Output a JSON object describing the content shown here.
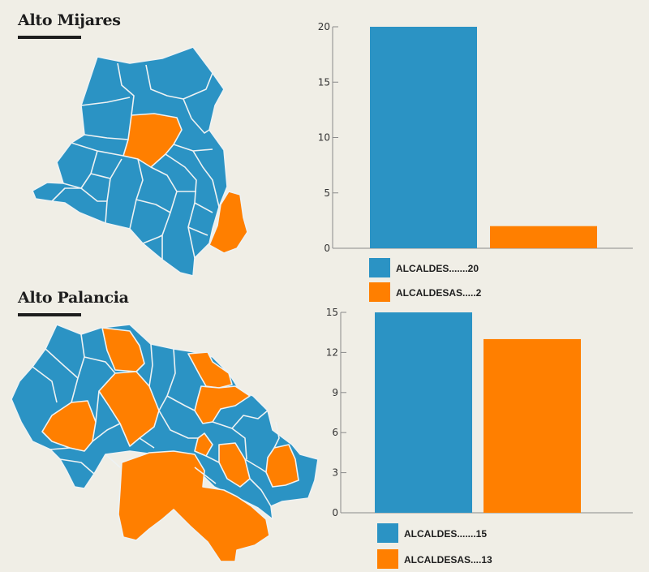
{
  "colors": {
    "alcaldes": "#2b93c4",
    "alcaldesas": "#ff7f00",
    "border": "#eef2f3",
    "axis": "#8a8a8a"
  },
  "sections": [
    {
      "title": "Alto Mijares"
    },
    {
      "title": "Alto Palancia"
    }
  ],
  "chart_data": [
    {
      "type": "bar",
      "title": "Alto Mijares",
      "categories": [
        "ALCALDES",
        "ALCALDESAS"
      ],
      "values": [
        20,
        2
      ],
      "ylim": [
        0,
        20
      ],
      "yticks": [
        0,
        5,
        10,
        15,
        20
      ],
      "grid": false,
      "legend_position": "bottom-left",
      "legend": [
        {
          "label": "ALCALDES.......20",
          "color": "#2b93c4"
        },
        {
          "label": "ALCALDESAS.....2",
          "color": "#ff7f00"
        }
      ]
    },
    {
      "type": "bar",
      "title": "Alto Palancia",
      "categories": [
        "ALCALDES",
        "ALCALDESAS"
      ],
      "values": [
        15,
        13
      ],
      "ylim": [
        0,
        15
      ],
      "yticks": [
        0,
        3,
        6,
        9,
        12,
        15
      ],
      "grid": false,
      "legend_position": "bottom-left",
      "legend": [
        {
          "label": "ALCALDES.......15",
          "color": "#2b93c4"
        },
        {
          "label": "ALCALDESAS....13",
          "color": "#ff7f00"
        }
      ]
    }
  ]
}
